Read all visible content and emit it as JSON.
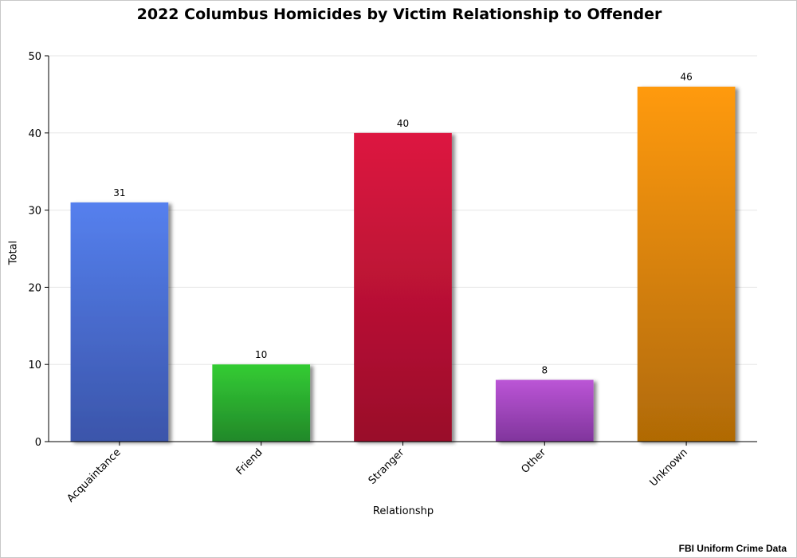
{
  "chart_data": {
    "type": "bar",
    "title": "2022 Columbus Homicides by Victim Relationship to Offender",
    "xlabel": "Relationshp",
    "ylabel": "Total",
    "categories": [
      "Acquaintance",
      "Friend",
      "Stranger",
      "Other",
      "Unknown"
    ],
    "values": [
      31,
      10,
      40,
      8,
      46
    ],
    "ylim": [
      0,
      50
    ],
    "yticks": [
      0,
      10,
      20,
      30,
      40,
      50
    ],
    "grid": true,
    "data_labels": true,
    "colors": [
      {
        "top": "#5580ee",
        "bottom": "#3b55aa"
      },
      {
        "top": "#33cc33",
        "bottom": "#22882a"
      },
      {
        "top": "#dd1740",
        "bottom": "#990c2a"
      },
      {
        "top": "#bb55d6",
        "bottom": "#80359c"
      },
      {
        "top": "#ff9a0f",
        "bottom": "#b06a06"
      }
    ]
  },
  "footer": {
    "source": "FBI Uniform Crime Data"
  }
}
